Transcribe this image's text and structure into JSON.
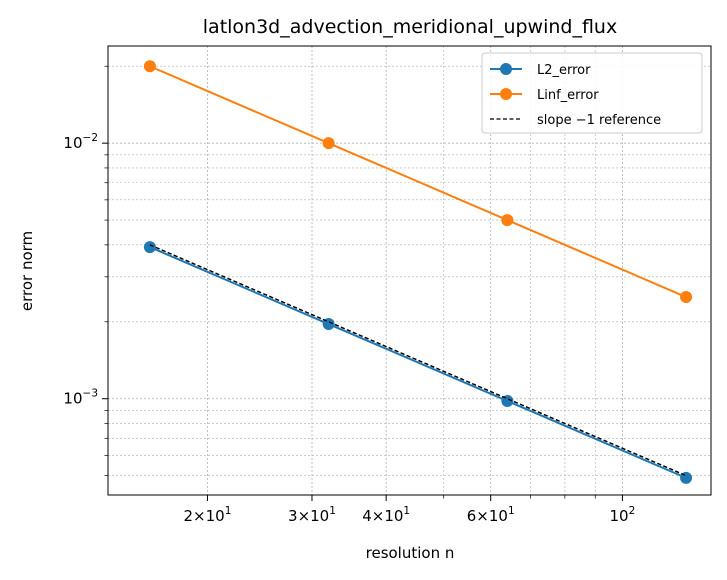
{
  "chart_data": {
    "type": "line",
    "title": "latlon3d_advection_meridional_upwind_flux",
    "xlabel": "resolution n",
    "ylabel": "error norm",
    "xscale": "log",
    "yscale": "log",
    "xlim": [
      13.6,
      141
    ],
    "ylim": [
      0.00042,
      0.024
    ],
    "grid": true,
    "legend_position": "top-right",
    "x_ticks": [
      {
        "value": 20,
        "base": "2×10",
        "exp": "1"
      },
      {
        "value": 30,
        "base": "3×10",
        "exp": "1"
      },
      {
        "value": 40,
        "base": "4×10",
        "exp": "1"
      },
      {
        "value": 60,
        "base": "6×10",
        "exp": "1"
      },
      {
        "value": 100,
        "base": "10",
        "exp": "2"
      }
    ],
    "y_ticks": [
      {
        "value": 0.001,
        "base": "10",
        "exp": "−3"
      },
      {
        "value": 0.01,
        "base": "10",
        "exp": "−2"
      }
    ],
    "series": [
      {
        "name": "L2_error",
        "color": "#1f77b4",
        "style": "line-marker",
        "x": [
          16,
          32,
          64,
          128
        ],
        "y": [
          0.00392,
          0.00196,
          0.00098,
          0.00049
        ]
      },
      {
        "name": "Linf_error",
        "color": "#ff7f0e",
        "style": "line-marker",
        "x": [
          16,
          32,
          64,
          128
        ],
        "y": [
          0.02,
          0.01,
          0.005,
          0.0025
        ]
      },
      {
        "name": "slope −1 reference",
        "color": "#000000",
        "style": "dashed",
        "x": [
          16,
          32,
          64,
          128
        ],
        "y": [
          0.004,
          0.002,
          0.001,
          0.0005
        ]
      }
    ]
  }
}
